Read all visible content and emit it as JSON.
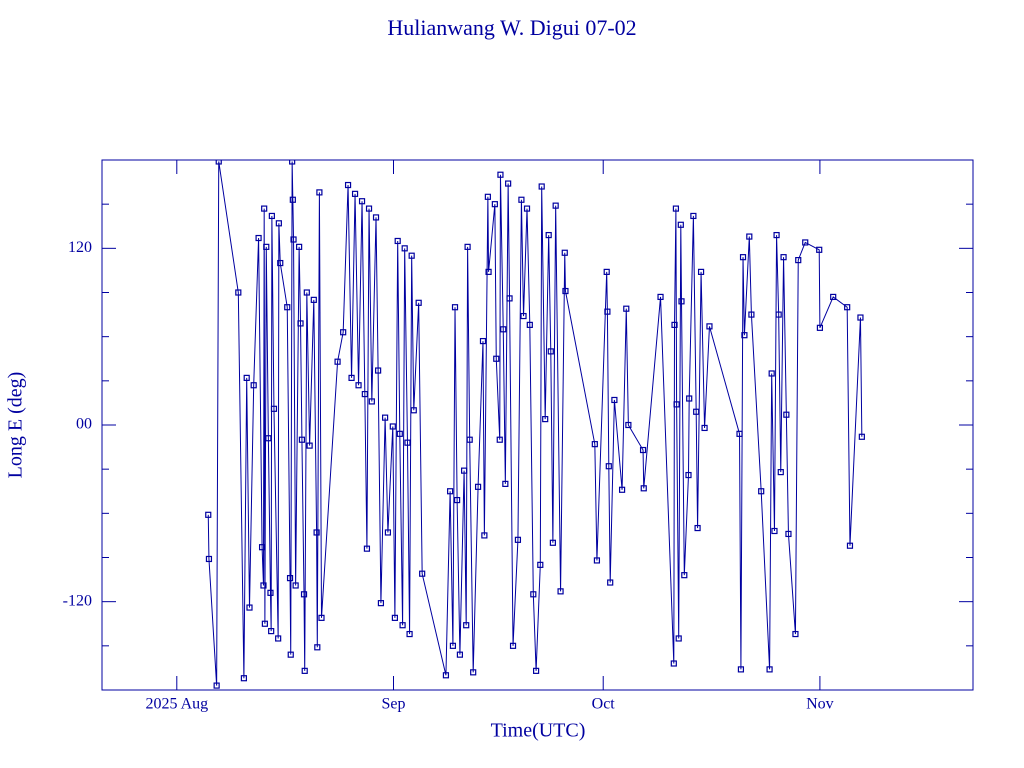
{
  "chart_data": {
    "type": "line",
    "title": "Hulianwang W. Digui 07-02",
    "x_label": "Time(UTC)",
    "y_label": "Long E (deg)",
    "color": "#0000a0",
    "markers": true,
    "xlim": [
      202.3,
      326.9
    ],
    "ylim": [
      -180,
      180
    ],
    "xticks": [
      {
        "value": 213,
        "label": "2025 Aug"
      },
      {
        "value": 244,
        "label": "Sep"
      },
      {
        "value": 274,
        "label": "Oct"
      },
      {
        "value": 305,
        "label": "Nov"
      }
    ],
    "yticks": [
      {
        "value": -120,
        "label": "-120"
      },
      {
        "value": 0,
        "label": "00"
      },
      120
    ],
    "yminorticks": [
      -150,
      -90,
      -60,
      -30,
      30,
      60,
      90,
      150
    ],
    "x": [
      217.5,
      217.6,
      218.7,
      219.0,
      221.8,
      222.6,
      223.0,
      223.4,
      224.0,
      224.7,
      225.2,
      225.4,
      225.5,
      225.6,
      225.8,
      226.1,
      226.4,
      226.5,
      226.6,
      226.9,
      227.5,
      227.6,
      227.8,
      228.8,
      229.2,
      229.3,
      229.5,
      229.6,
      229.7,
      230.0,
      230.5,
      230.7,
      230.9,
      231.2,
      231.3,
      231.6,
      232.0,
      232.6,
      233.0,
      233.1,
      233.4,
      233.7,
      236.0,
      236.8,
      237.5,
      238.0,
      238.5,
      239.0,
      239.5,
      239.9,
      240.2,
      240.5,
      240.9,
      241.5,
      241.8,
      242.2,
      242.8,
      243.2,
      243.9,
      244.2,
      244.6,
      244.9,
      245.3,
      245.6,
      246.0,
      246.3,
      246.6,
      246.9,
      247.6,
      248.1,
      251.5,
      252.1,
      252.5,
      252.8,
      253.1,
      253.5,
      254.1,
      254.4,
      254.6,
      254.9,
      255.4,
      256.1,
      256.8,
      257.0,
      257.5,
      257.6,
      258.5,
      258.7,
      259.2,
      259.3,
      259.7,
      260.0,
      260.4,
      260.6,
      261.1,
      261.8,
      262.3,
      262.6,
      263.1,
      263.5,
      264.0,
      264.4,
      265.0,
      265.2,
      265.7,
      266.2,
      266.5,
      266.8,
      267.2,
      267.9,
      268.5,
      268.6,
      272.8,
      273.1,
      274.5,
      274.6,
      274.8,
      275.0,
      275.6,
      276.7,
      277.3,
      277.6,
      279.7,
      279.8,
      282.2,
      284.1,
      284.2,
      284.4,
      284.5,
      284.8,
      285.1,
      285.2,
      285.6,
      286.2,
      286.3,
      286.9,
      287.3,
      287.5,
      288.0,
      288.5,
      289.2,
      293.5,
      293.7,
      294.0,
      294.2,
      294.9,
      295.2,
      296.6,
      297.8,
      298.1,
      298.5,
      298.8,
      299.1,
      299.4,
      299.8,
      300.2,
      300.5,
      301.5,
      301.9,
      302.9,
      304.9,
      305.0,
      306.9,
      308.9,
      309.3,
      310.8,
      311.0
    ],
    "values": [
      -61,
      -91,
      -177,
      179,
      90,
      -172,
      32,
      -124,
      27,
      127,
      -83,
      -109,
      147,
      -135,
      121,
      -9,
      -114,
      -140,
      142,
      11,
      -145,
      137,
      110,
      80,
      -104,
      -156,
      179,
      153,
      126,
      -109,
      121,
      69,
      -10,
      -115,
      -167,
      90,
      -14,
      85,
      -73,
      -151,
      158,
      -131,
      43,
      63,
      163,
      32,
      157,
      27,
      152,
      21,
      -84,
      147,
      16,
      141,
      37,
      -121,
      5,
      -73,
      -1,
      -131,
      125,
      -6,
      -136,
      120,
      -12,
      -142,
      115,
      10,
      83,
      -101,
      -170,
      -45,
      -150,
      80,
      -51,
      -156,
      -31,
      -136,
      121,
      -10,
      -168,
      -42,
      57,
      -75,
      155,
      104,
      150,
      45,
      -10,
      170,
      65,
      -40,
      164,
      86,
      -150,
      -78,
      153,
      74,
      147,
      68,
      -115,
      -167,
      -95,
      162,
      4,
      129,
      50,
      -80,
      149,
      -113,
      117,
      91,
      -13,
      -92,
      104,
      77,
      -28,
      -107,
      17,
      -44,
      79,
      0,
      -17,
      -43,
      87,
      -162,
      68,
      147,
      14,
      -145,
      136,
      84,
      -102,
      -34,
      18,
      142,
      9,
      -70,
      104,
      -2,
      67,
      -6,
      -166,
      114,
      61,
      128,
      75,
      -45,
      -166,
      35,
      -72,
      129,
      75,
      -32,
      114,
      7,
      -74,
      -142,
      112,
      124,
      119,
      66,
      87,
      80,
      -82,
      73,
      -8
    ]
  }
}
